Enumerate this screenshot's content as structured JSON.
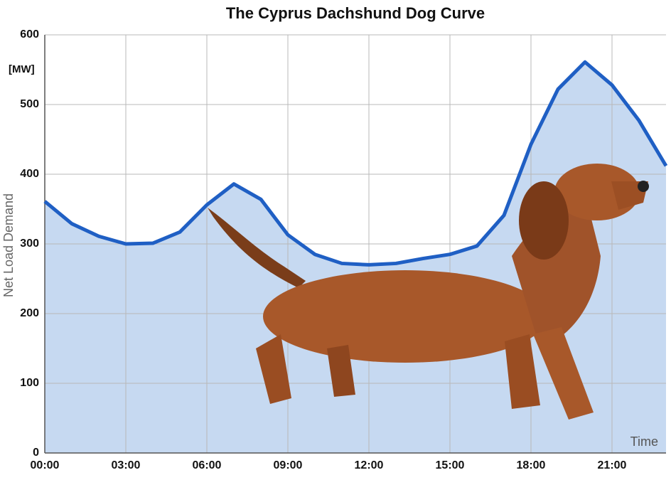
{
  "chart_data": {
    "type": "line",
    "title": "The Cyprus Dachshund Dog Curve",
    "y_unit_label": "[MW]",
    "y_label": "Net Load Demand",
    "x_label": "Time",
    "x": [
      0,
      1,
      2,
      3,
      4,
      5,
      6,
      7,
      8,
      9,
      10,
      11,
      12,
      13,
      14,
      15,
      16,
      17,
      18,
      19,
      20,
      21,
      22,
      23
    ],
    "values": [
      361,
      329,
      311,
      300,
      301,
      317,
      356,
      386,
      364,
      313,
      285,
      272,
      270,
      272,
      279,
      285,
      297,
      341,
      443,
      522,
      561,
      528,
      477,
      412
    ],
    "color": "#1f5fc4",
    "fill_area": true,
    "fill_color": "#c6d9f1",
    "xlim": [
      0,
      23
    ],
    "xticks": [
      {
        "value": 0,
        "label": "00:00"
      },
      {
        "value": 3,
        "label": "03:00"
      },
      {
        "value": 6,
        "label": "06:00"
      },
      {
        "value": 9,
        "label": "09:00"
      },
      {
        "value": 12,
        "label": "12:00"
      },
      {
        "value": 15,
        "label": "15:00"
      },
      {
        "value": 18,
        "label": "18:00"
      },
      {
        "value": 21,
        "label": "21:00"
      }
    ],
    "ylim": [
      0,
      600
    ],
    "yticks": [
      0,
      100,
      200,
      300,
      400,
      500,
      600
    ],
    "grid": true
  }
}
